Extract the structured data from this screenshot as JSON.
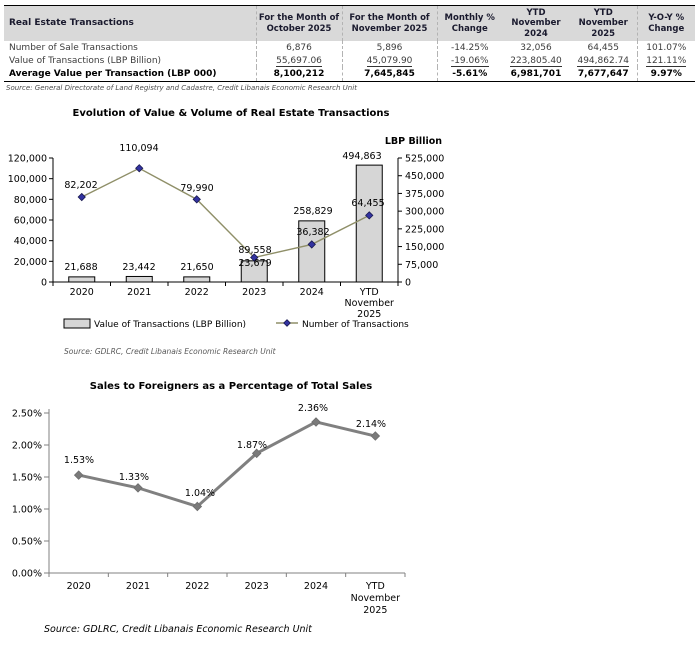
{
  "table": {
    "title_cell": "Real Estate Transactions",
    "columns": [
      "For the Month of\nOctober 2025",
      "For the Month of\nNovember 2025",
      "Monthly %\nChange",
      "YTD\nNovember\n2024",
      "YTD\nNovember\n2025",
      "Y-O-Y %\nChange"
    ],
    "rows": [
      {
        "label": "Number of Sale Transactions",
        "values": [
          "6,876",
          "5,896",
          "-14.25%",
          "32,056",
          "64,455",
          "101.07%"
        ],
        "underline": false,
        "bold": false
      },
      {
        "label": "Value of Transactions (LBP Billion)",
        "values": [
          "55,697.06",
          "45,079.90",
          "-19.06%",
          "223,805.40",
          "494,862.74",
          "121.11%"
        ],
        "underline": true,
        "bold": false
      },
      {
        "label": "Average Value per Transaction (LBP 000)",
        "values": [
          "8,100,212",
          "7,645,845",
          "-5.61%",
          "6,981,701",
          "7,677,647",
          "9.97%"
        ],
        "underline": false,
        "bold": true
      }
    ],
    "source": "Source: General Directorate of Land Registry and Cadastre, Credit Libanais Economic Research Unit"
  },
  "chart_data": [
    {
      "type": "combo_bar_line",
      "title": "Evolution of Value & Volume of Real Estate Transactions",
      "right_axis_title": "LBP Billion",
      "categories": [
        "2020",
        "2021",
        "2022",
        "2023",
        "2024",
        "YTD November 2025"
      ],
      "category_lines": [
        [
          "2020"
        ],
        [
          "2021"
        ],
        [
          "2022"
        ],
        [
          "2023"
        ],
        [
          "2024"
        ],
        [
          "YTD",
          "November",
          "2025"
        ]
      ],
      "series": [
        {
          "name": "Value of Transactions (LBP Billion)",
          "type": "bar",
          "axis": "right",
          "values": [
            21688,
            23442,
            21650,
            89558,
            258829,
            494863
          ],
          "labels": [
            "21,688",
            "23,442",
            "21,650",
            "89,558",
            "258,829",
            "494,863"
          ]
        },
        {
          "name": "Number of Transactions",
          "type": "line",
          "axis": "left",
          "values": [
            82202,
            110094,
            79990,
            23679,
            36382,
            64455
          ],
          "labels": [
            "82,202",
            "110,094",
            "79,990",
            "23,679",
            "36,382",
            "64,455"
          ]
        }
      ],
      "left_axis": {
        "min": 0,
        "max": 120000,
        "step": 20000,
        "tick_labels": [
          "0",
          "20,000",
          "40,000",
          "60,000",
          "80,000",
          "100,000",
          "120,000"
        ]
      },
      "right_axis": {
        "min": 0,
        "max": 525000,
        "step": 75000,
        "tick_labels": [
          "0",
          "75,000",
          "150,000",
          "225,000",
          "300,000",
          "375,000",
          "450,000",
          "525,000"
        ]
      },
      "legend_position": "bottom",
      "grid": false,
      "source": "Source: GDLRC, Credit Libanais Economic Research Unit"
    },
    {
      "type": "line",
      "title": "Sales to Foreigners as a Percentage of Total Sales",
      "categories": [
        "2020",
        "2021",
        "2022",
        "2023",
        "2024",
        "YTD November 2025"
      ],
      "category_lines": [
        [
          "2020"
        ],
        [
          "2021"
        ],
        [
          "2022"
        ],
        [
          "2023"
        ],
        [
          "2024"
        ],
        [
          "YTD",
          "November",
          "2025"
        ]
      ],
      "values": [
        1.53,
        1.33,
        1.04,
        1.87,
        2.36,
        2.14
      ],
      "labels": [
        "1.53%",
        "1.33%",
        "1.04%",
        "1.87%",
        "2.36%",
        "2.14%"
      ],
      "y_axis": {
        "min": 0,
        "max": 2.5,
        "step": 0.5,
        "tick_labels": [
          "0.00%",
          "0.50%",
          "1.00%",
          "1.50%",
          "2.00%",
          "2.50%"
        ]
      },
      "grid": false,
      "source": "Source: GDLRC, Credit Libanais Economic Research Unit"
    }
  ],
  "colors": {
    "table_header_bg": "#d9d9d9",
    "bar_fill": "#d6d6d6",
    "bar_stroke": "#000000",
    "line1_stroke": "#8f8f68",
    "marker1_fill": "#3333a0",
    "line2_stroke": "#808080"
  }
}
